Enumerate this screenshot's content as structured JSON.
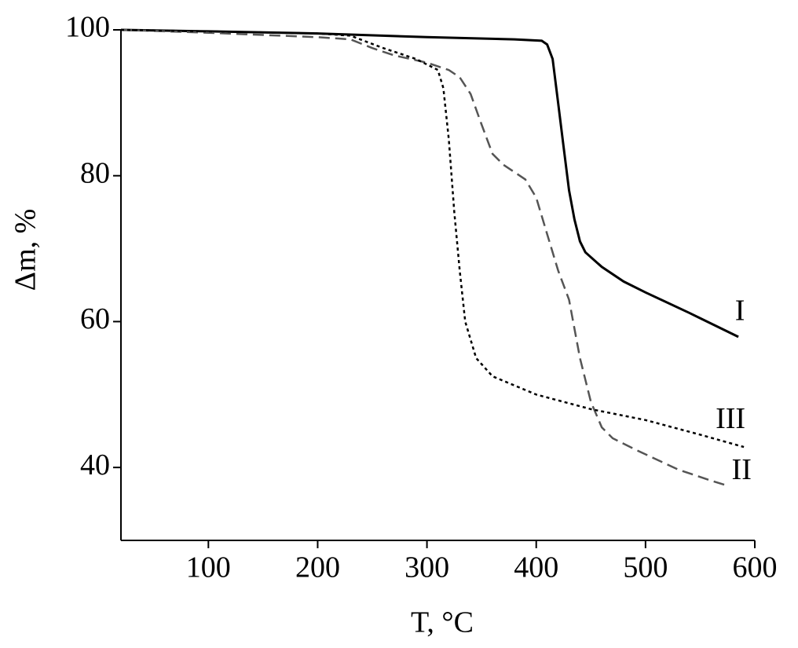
{
  "chart_data": {
    "type": "line",
    "xlabel": "T, °C",
    "ylabel": "Δm, %",
    "xlim": [
      20,
      600
    ],
    "xticks": [
      100,
      200,
      300,
      400,
      500,
      600
    ],
    "ylim": [
      30,
      100
    ],
    "yticks": [
      40,
      60,
      80,
      100
    ],
    "series": [
      {
        "name": "I",
        "color": "#000000",
        "dash": "solid",
        "x": [
          20,
          100,
          200,
          300,
          380,
          405,
          410,
          415,
          420,
          425,
          430,
          435,
          440,
          445,
          460,
          480,
          500,
          540,
          585
        ],
        "values": [
          100,
          99.8,
          99.5,
          99.0,
          98.7,
          98.5,
          98.0,
          96,
          90,
          84,
          78,
          74,
          71,
          69.5,
          67.5,
          65.5,
          64,
          61.2,
          57.9
        ]
      },
      {
        "name": "II",
        "color": "#555555",
        "dash": "long",
        "x": [
          20,
          100,
          200,
          230,
          250,
          270,
          300,
          320,
          330,
          340,
          350,
          360,
          370,
          390,
          400,
          410,
          420,
          430,
          440,
          450,
          460,
          470,
          490,
          530,
          560,
          575
        ],
        "values": [
          100,
          99.6,
          99,
          98.7,
          97.5,
          96.5,
          95.5,
          94.5,
          93.5,
          91.2,
          87,
          83,
          81.5,
          79.5,
          77,
          72,
          67,
          63,
          55,
          49,
          45.5,
          44,
          42.5,
          39.7,
          38.2,
          37.5
        ]
      },
      {
        "name": "III",
        "color": "#000000",
        "dash": "short",
        "x": [
          20,
          100,
          200,
          230,
          260,
          290,
          310,
          315,
          320,
          325,
          330,
          335,
          345,
          360,
          400,
          450,
          500,
          550,
          590
        ],
        "values": [
          100,
          99.8,
          99.5,
          99.2,
          97.5,
          96,
          94.5,
          92,
          85,
          75,
          67,
          60,
          55,
          52.5,
          50,
          48,
          46.5,
          44.5,
          42.8
        ]
      }
    ]
  }
}
